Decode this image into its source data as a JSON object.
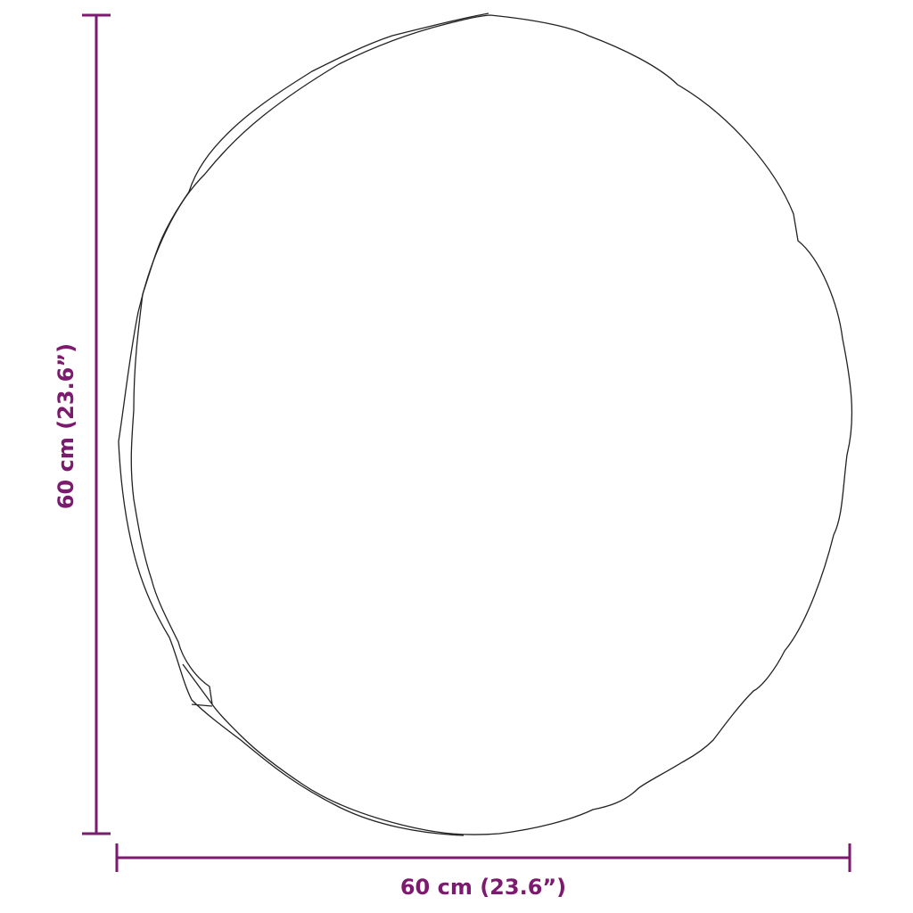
{
  "dimensions": {
    "width_label": "60 cm (23.6”)",
    "height_label": "60 cm (23.6”)"
  },
  "colors": {
    "dimension": "#7b1a6e",
    "outline": "#222222"
  },
  "object": {
    "shape": "round-mirror-irregular-edge"
  }
}
